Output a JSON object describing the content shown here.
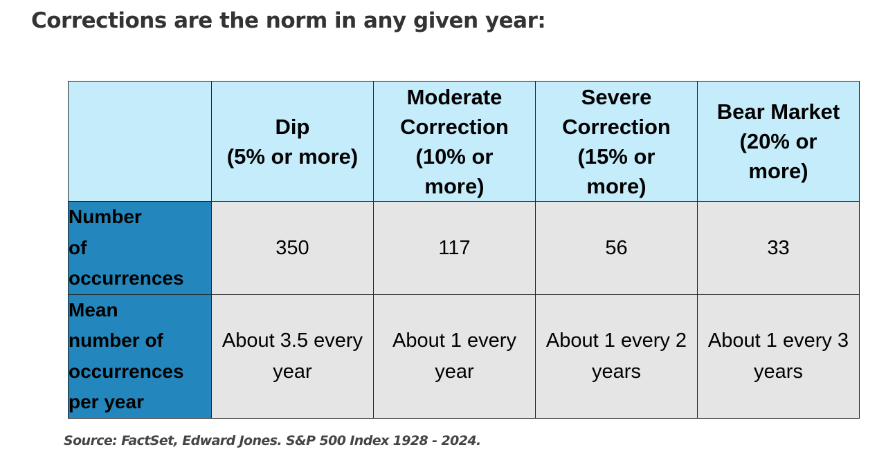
{
  "heading": "Corrections are the norm in any given year:",
  "table": {
    "corner": "",
    "columns": [
      [
        "Dip",
        "(5% or more)"
      ],
      [
        "Moderate",
        "Correction",
        "(10% or",
        "more)"
      ],
      [
        "Severe",
        "Correction",
        "(15% or",
        "more)"
      ],
      [
        "Bear Market",
        "(20% or",
        "more)"
      ]
    ],
    "rows": [
      {
        "label": [
          "Number",
          "of",
          "occurrences"
        ],
        "values": [
          "350",
          "117",
          "56",
          "33"
        ]
      },
      {
        "label": [
          "Mean",
          "number of",
          "occurrences",
          "per year"
        ],
        "values": [
          [
            "About 3.5 every",
            "year"
          ],
          [
            "About 1 every",
            "year"
          ],
          [
            "About 1 every 2",
            "years"
          ],
          [
            "About 1 every 3",
            "years"
          ]
        ]
      }
    ]
  },
  "source": "Source: FactSet, Edward Jones. S&P 500 Index 1928 - 2024.",
  "colors": {
    "header_bg": "#c4ecfa",
    "row_header_bg": "#2387bd",
    "cell_bg": "#e5e5e5",
    "heading_text": "#333333"
  }
}
